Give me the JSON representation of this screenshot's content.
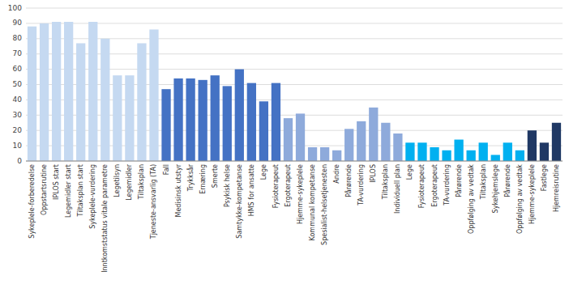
{
  "chart_data": {
    "type": "bar",
    "categories": [
      "Sykeplele-forberedelse",
      "Oppstartsrutine",
      "IPLOS start",
      "Legemidler start",
      "Tiltaksplan start",
      "Sykeplele-vurdering",
      "Inntkomststatus vitale parametre",
      "Legetilsyn",
      "Legemidler",
      "Tiltaksplan",
      "Tjeneste-ansvarlig (TA)",
      "Fall",
      "Medisinsk utstyr",
      "Trykksår",
      "Ernæring",
      "Smerte",
      "Psykisk helse",
      "Samtykke-kompetanse",
      "HMS for ansatte",
      "Lege",
      "Fysioterapeut",
      "Ergoterapeut",
      "Hjemme-sykeplele",
      "Kommunal kompetanse",
      "Spesialist-helsetjenesten",
      "Andre",
      "Pårørende",
      "TA-vurdering",
      "IPLOS",
      "Tiltaksplan",
      "Individuell plan",
      "Lege",
      "Fysioterapeut",
      "Ergoterapeut",
      "TA-vurdering",
      "Pårørende",
      "Oppfølging av vedtak",
      "Tiltaksplan",
      "Sykehjemslege",
      "Pårørende",
      "Oppfølging av vedtak",
      "Hjemme-sykeplele",
      "Fastlege",
      "Hjemreisrutine"
    ],
    "values": [
      88,
      90,
      91,
      91,
      77,
      91,
      80,
      56,
      56,
      77,
      86,
      47,
      54,
      54,
      53,
      56,
      49,
      60,
      51,
      39,
      51,
      28,
      31,
      9,
      9,
      7,
      21,
      26,
      35,
      25,
      18,
      12,
      12,
      9,
      7,
      14,
      7,
      12,
      4,
      12,
      7,
      20,
      12,
      25
    ],
    "colors": [
      "#c5d9f1",
      "#c5d9f1",
      "#c5d9f1",
      "#c5d9f1",
      "#c5d9f1",
      "#c5d9f1",
      "#c5d9f1",
      "#c5d9f1",
      "#c5d9f1",
      "#c5d9f1",
      "#c5d9f1",
      "#4472c4",
      "#4472c4",
      "#4472c4",
      "#4472c4",
      "#4472c4",
      "#4472c4",
      "#4472c4",
      "#4472c4",
      "#4472c4",
      "#4472c4",
      "#8eaadb",
      "#8eaadb",
      "#8eaadb",
      "#8eaadb",
      "#8eaadb",
      "#8eaadb",
      "#8eaadb",
      "#8eaadb",
      "#8eaadb",
      "#8eaadb",
      "#00b0f0",
      "#00b0f0",
      "#00b0f0",
      "#00b0f0",
      "#00b0f0",
      "#00b0f0",
      "#00b0f0",
      "#00b0f0",
      "#00b0f0",
      "#00b0f0",
      "#1f3864",
      "#1f3864",
      "#1f3864",
      "#1f3864"
    ],
    "ylim": [
      0,
      100
    ],
    "yticks": [
      0,
      10,
      20,
      30,
      40,
      50,
      60,
      70,
      80,
      90,
      100
    ],
    "grid": true
  }
}
